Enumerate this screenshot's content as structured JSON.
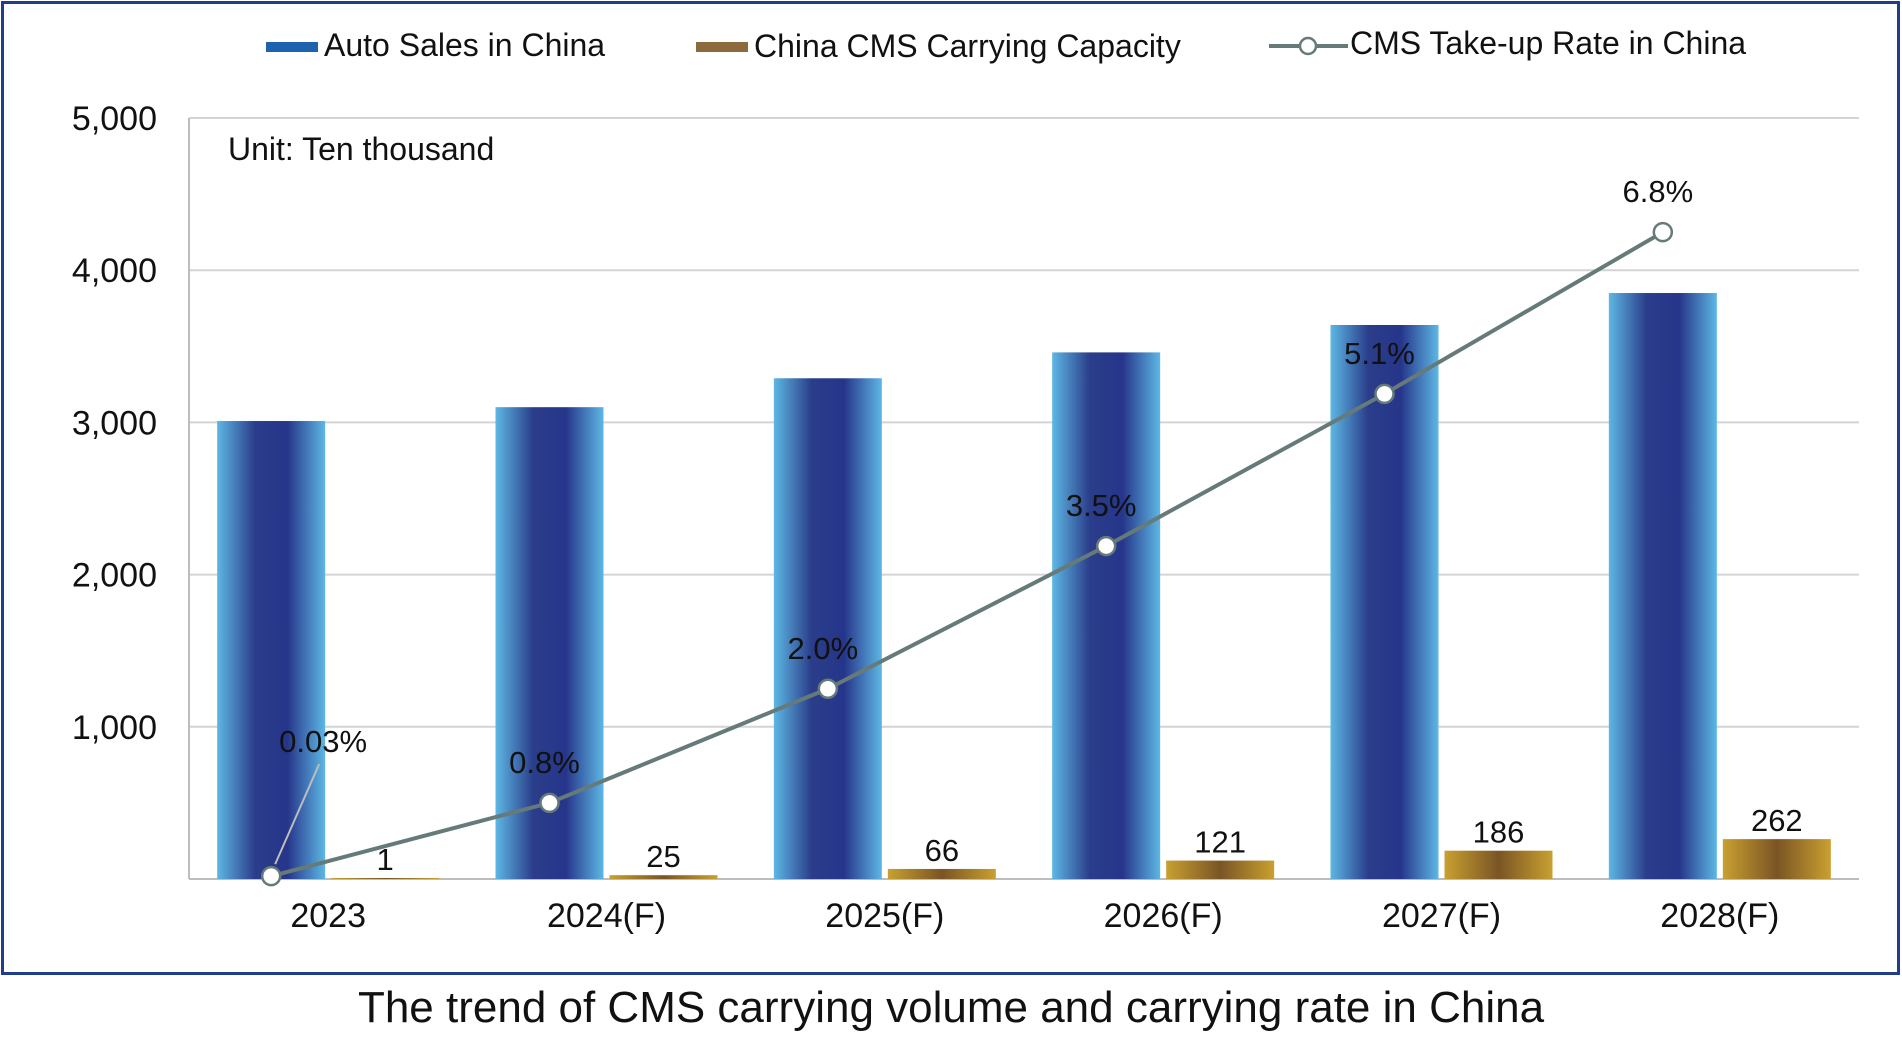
{
  "caption": "The trend of CMS carrying volume and carrying rate in China",
  "chart_data": {
    "type": "bar",
    "title": "",
    "unit_note": "Unit: Ten thousand",
    "categories": [
      "2023",
      "2024(F)",
      "2025(F)",
      "2026(F)",
      "2027(F)",
      "2028(F)"
    ],
    "ylim": [
      0,
      5000
    ],
    "y_ticks": [
      "5,000",
      "4,000",
      "3,000",
      "2,000",
      "1,000"
    ],
    "grid": true,
    "legend_position": "top",
    "series": [
      {
        "name": "Auto Sales in China",
        "type": "bar",
        "values": [
          3009,
          3100,
          3290,
          3460,
          3640,
          3850
        ],
        "color": "#1e63b0"
      },
      {
        "name": "China CMS Carrying Capacity",
        "type": "bar",
        "values": [
          1,
          25,
          66,
          121,
          186,
          262
        ],
        "labels": [
          "1",
          "25",
          "66",
          "121",
          "186",
          "262"
        ],
        "color": "#8c6a3c"
      },
      {
        "name": "CMS Take-up Rate in China",
        "type": "line",
        "values": [
          0.03,
          0.8,
          2.0,
          3.5,
          5.1,
          6.8
        ],
        "unit": "%",
        "labels": [
          "0.03%",
          "0.8%",
          "2.0%",
          "3.5%",
          "5.1%",
          "6.8%"
        ],
        "color": "#667a7a"
      }
    ]
  }
}
